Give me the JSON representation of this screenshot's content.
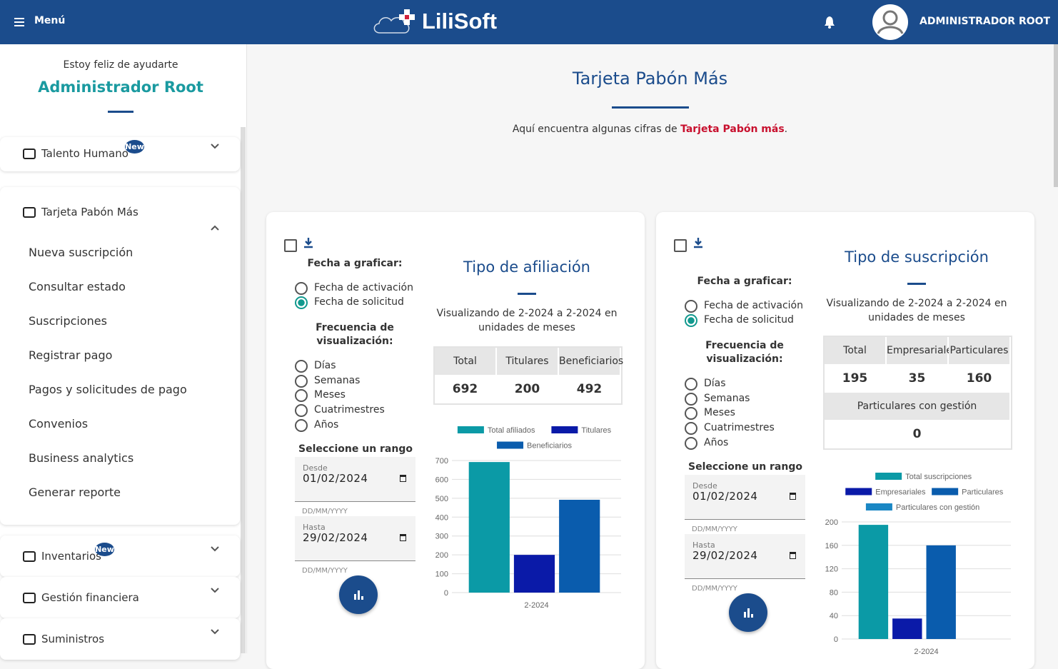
{
  "header": {
    "menu": "Menú",
    "logo": "LiliSoft",
    "user": "ADMINISTRADOR ROOT"
  },
  "sidebar": {
    "greeting": "Estoy feliz de ayudarte",
    "name": "Administrador Root",
    "sections": [
      {
        "label": "Talento Humano",
        "badge": "New"
      },
      {
        "label": "Tarjeta Pabón Más",
        "items": [
          "Nueva suscripción",
          "Consultar estado",
          "Suscripciones",
          "Registrar pago",
          "Pagos y solicitudes de pago",
          "Convenios",
          "Business analytics",
          "Generar reporte"
        ]
      },
      {
        "label": "Inventarios",
        "badge": "New"
      },
      {
        "label": "Gestión financiera"
      },
      {
        "label": "Suministros"
      }
    ]
  },
  "page": {
    "title": "Tarjeta Pabón Más",
    "intro": "Aquí encuentra algunas cifras de ",
    "intro_highlight": "Tarjeta Pabón más",
    "intro_end": "."
  },
  "cards": [
    {
      "date_label": "Fecha a graficar:",
      "date_options": [
        "Fecha de activación",
        "Fecha de solicitud"
      ],
      "date_selected": 1,
      "frequency_label": "Frecuencia de visualización:",
      "frequency_options": [
        "Días",
        "Semanas",
        "Meses",
        "Cuatrimestres",
        "Años"
      ],
      "range_label": "Seleccione un rango",
      "from": {
        "label": "Desde",
        "value": "01/02/2024",
        "placeholder": "DD/MM/YYYY"
      },
      "to": {
        "label": "Hasta",
        "value": "29/02/2024",
        "placeholder": "DD/MM/YYYY"
      },
      "table": [
        {
          "header": [
            "Total",
            "Titulares",
            "Beneficiarios"
          ],
          "values": [
            692,
            200,
            492
          ]
        }
      ]
    },
    {
      "date_label": "Fecha a graficar:",
      "date_options": [
        "Fecha de activación",
        "Fecha de solicitud"
      ],
      "date_selected": 1,
      "frequency_label": "Frecuencia de visualización:",
      "frequency_options": [
        "Días",
        "Semanas",
        "Meses",
        "Cuatrimestres",
        "Años"
      ],
      "range_label": "Seleccione un rango",
      "from": {
        "label": "Desde",
        "value": "01/02/2024",
        "placeholder": "DD/MM/YYYY"
      },
      "to": {
        "label": "Hasta",
        "value": "29/02/2024",
        "placeholder": "DD/MM/YYYY"
      },
      "table": [
        {
          "header": [
            "Total",
            "Empresariales",
            "Particulares"
          ],
          "values": [
            195,
            35,
            160
          ]
        },
        {
          "header": [
            "Particulares con gestión"
          ],
          "values": [
            0
          ]
        }
      ]
    }
  ],
  "chart_data": [
    {
      "type": "bar",
      "title": "Tipo de afiliación",
      "subtitle": "Visualizando de 2-2024 a 2-2024 en unidades de meses",
      "categories": [
        "2-2024"
      ],
      "series": [
        {
          "name": "Total afiliados",
          "color": "#0b9aa6",
          "values": [
            692
          ]
        },
        {
          "name": "Titulares",
          "color": "#0a1aa8",
          "values": [
            200
          ]
        },
        {
          "name": "Beneficiarios",
          "color": "#0a5cad",
          "values": [
            492
          ]
        }
      ],
      "ylim": [
        0,
        700
      ],
      "yticks": [
        0,
        100,
        200,
        300,
        400,
        500,
        600,
        700
      ],
      "grid": true
    },
    {
      "type": "bar",
      "title": "Tipo de suscripción",
      "subtitle": "Visualizando de 2-2024 a 2-2024 en unidades de meses",
      "categories": [
        "2-2024"
      ],
      "series": [
        {
          "name": "Total suscripciones",
          "color": "#0b9aa6",
          "values": [
            195
          ]
        },
        {
          "name": "Empresariales",
          "color": "#0a1aa8",
          "values": [
            35
          ]
        },
        {
          "name": "Particulares",
          "color": "#0a5cad",
          "values": [
            160
          ]
        },
        {
          "name": "Particulares con gestión",
          "color": "#1a87c4",
          "values": [
            0
          ]
        }
      ],
      "ylim": [
        0,
        200
      ],
      "yticks": [
        0,
        40,
        80,
        120,
        160,
        200
      ],
      "grid": true
    }
  ]
}
